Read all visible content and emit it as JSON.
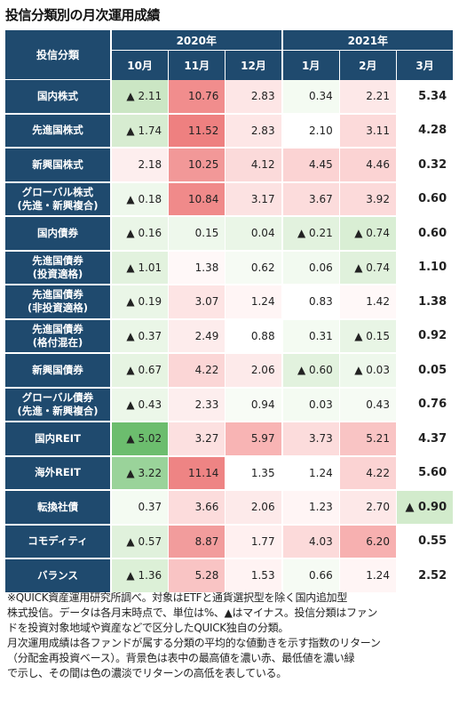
{
  "title": "投信分類別の月次運用成績",
  "chart_data": {
    "type": "table",
    "header": {
      "category": "投信分類",
      "years": [
        {
          "label": "2020年",
          "span": 3
        },
        {
          "label": "2021年",
          "span": 3
        }
      ],
      "months": [
        "10月",
        "11月",
        "12月",
        "1月",
        "2月",
        "3月"
      ]
    },
    "rows": [
      {
        "category": "国内株式",
        "values": [
          "▲ 2.11",
          "10.76",
          "2.83",
          "0.34",
          "2.21",
          "5.34"
        ],
        "bg": [
          "#cbe6c4",
          "#f18d8d",
          "#fde6e6",
          "#f4fbf2",
          "#fde8e8",
          "#ffffff"
        ]
      },
      {
        "category": "先進国株式",
        "values": [
          "▲ 1.74",
          "11.52",
          "2.83",
          "2.10",
          "3.11",
          "4.28"
        ],
        "bg": [
          "#d7ecd1",
          "#ee8080",
          "#fde6e6",
          "#ffffff",
          "#fcdada",
          "#ffffff"
        ]
      },
      {
        "category": "新興国株式",
        "values": [
          "2.18",
          "10.25",
          "4.12",
          "4.45",
          "4.46",
          "0.32"
        ],
        "bg": [
          "#fdeeee",
          "#f29898",
          "#fbdada",
          "#fbd3d3",
          "#fbd3d3",
          "#ffffff"
        ]
      },
      {
        "category": "グローバル株式\n(先進・新興複合)",
        "values": [
          "▲ 0.18",
          "10.84",
          "3.17",
          "3.67",
          "3.92",
          "0.60"
        ],
        "bg": [
          "#eef8ec",
          "#f08a8a",
          "#fce2e2",
          "#fcdcdc",
          "#fcdada",
          "#ffffff"
        ]
      },
      {
        "category": "国内債券",
        "values": [
          "▲ 0.16",
          "0.15",
          "0.04",
          "▲ 0.21",
          "▲ 0.74",
          "0.60"
        ],
        "bg": [
          "#eaf6e7",
          "#eef8ec",
          "#eaf6e7",
          "#e2f2de",
          "#d9eed4",
          "#ffffff"
        ]
      },
      {
        "category": "先進国債券\n(投資適格)",
        "values": [
          "▲ 1.01",
          "1.38",
          "0.62",
          "0.06",
          "▲ 0.74",
          "1.10"
        ],
        "bg": [
          "#e2f2de",
          "#fff8f8",
          "#f6fbf4",
          "#f2faf0",
          "#e0f1dc",
          "#ffffff"
        ]
      },
      {
        "category": "先進国債券\n(非投資適格)",
        "values": [
          "▲ 0.19",
          "3.07",
          "1.24",
          "0.83",
          "1.42",
          "1.38"
        ],
        "bg": [
          "#eaf6e7",
          "#fde4e4",
          "#fff5f5",
          "#ffffff",
          "#fff8f8",
          "#ffffff"
        ]
      },
      {
        "category": "先進国債券\n(格付混在)",
        "values": [
          "▲ 0.37",
          "2.49",
          "0.88",
          "0.31",
          "▲ 0.15",
          "0.92"
        ],
        "bg": [
          "#eaf6e7",
          "#fdecec",
          "#ffffff",
          "#f4fbf2",
          "#e8f5e5",
          "#ffffff"
        ]
      },
      {
        "category": "新興国債券",
        "values": [
          "▲ 0.67",
          "4.22",
          "2.06",
          "▲ 0.60",
          "▲ 0.03",
          "0.05"
        ],
        "bg": [
          "#e6f4e2",
          "#fbd6d6",
          "#fdeaea",
          "#e2f2de",
          "#eef8ec",
          "#ffffff"
        ]
      },
      {
        "category": "グローバル債券\n(先進・新興複合)",
        "values": [
          "▲ 0.43",
          "2.33",
          "0.94",
          "0.03",
          "0.43",
          "0.76"
        ],
        "bg": [
          "#ecf7e9",
          "#fdeeee",
          "#f8fcf6",
          "#f4fbf2",
          "#f6fbf4",
          "#ffffff"
        ]
      },
      {
        "category": "国内REIT",
        "values": [
          "▲ 5.02",
          "3.27",
          "5.97",
          "3.73",
          "5.21",
          "4.37"
        ],
        "bg": [
          "#6cbd6e",
          "#fce0e0",
          "#f8b4b4",
          "#fcdcdc",
          "#f9c4c4",
          "#ffffff"
        ]
      },
      {
        "category": "海外REIT",
        "values": [
          "▲ 3.22",
          "11.14",
          "1.35",
          "1.24",
          "4.22",
          "5.60"
        ],
        "bg": [
          "#9ad39a",
          "#ee8484",
          "#ffffff",
          "#ffffff",
          "#fbd3d3",
          "#ffffff"
        ]
      },
      {
        "category": "転換社債",
        "values": [
          "0.37",
          "3.66",
          "2.06",
          "1.23",
          "2.70",
          "▲ 0.90"
        ],
        "bg": [
          "#f4fbf2",
          "#fcdcdc",
          "#fdeaea",
          "#fff5f5",
          "#fde8e8",
          "#d2ebcc"
        ]
      },
      {
        "category": "コモディティ",
        "values": [
          "▲ 0.57",
          "8.87",
          "1.77",
          "4.03",
          "6.20",
          "0.55"
        ],
        "bg": [
          "#e0f1dc",
          "#f29c9c",
          "#fff0f0",
          "#fcdada",
          "#f7b0b0",
          "#ffffff"
        ]
      },
      {
        "category": "バランス",
        "values": [
          "▲ 1.36",
          "5.28",
          "1.53",
          "0.66",
          "1.24",
          "2.52"
        ],
        "bg": [
          "#dcf0d7",
          "#f9c4c4",
          "#fff3f3",
          "#f6fbf4",
          "#fff5f5",
          "#ffffff"
        ]
      }
    ]
  },
  "note": {
    "line1": "※QUICK資産運用研究所調べ。対象はETFと通貨選択型を除く国内追加型",
    "line2": "株式投信。データは各月末時点で、単位は%、▲はマイナス。投信分類はファン",
    "line3": "ドを投資対象地域や資産などで区分したQUICK独自の分類。",
    "line4": "月次運用成績は各ファンドが属する分類の平均的な値動きを示す指数のリターン",
    "line5": "（分配金再投資ベース）。背景色は表中の最高値を濃い赤、最低値を濃い緑",
    "line6": "で示し、その間は色の濃淡でリターンの高低を表している。"
  }
}
